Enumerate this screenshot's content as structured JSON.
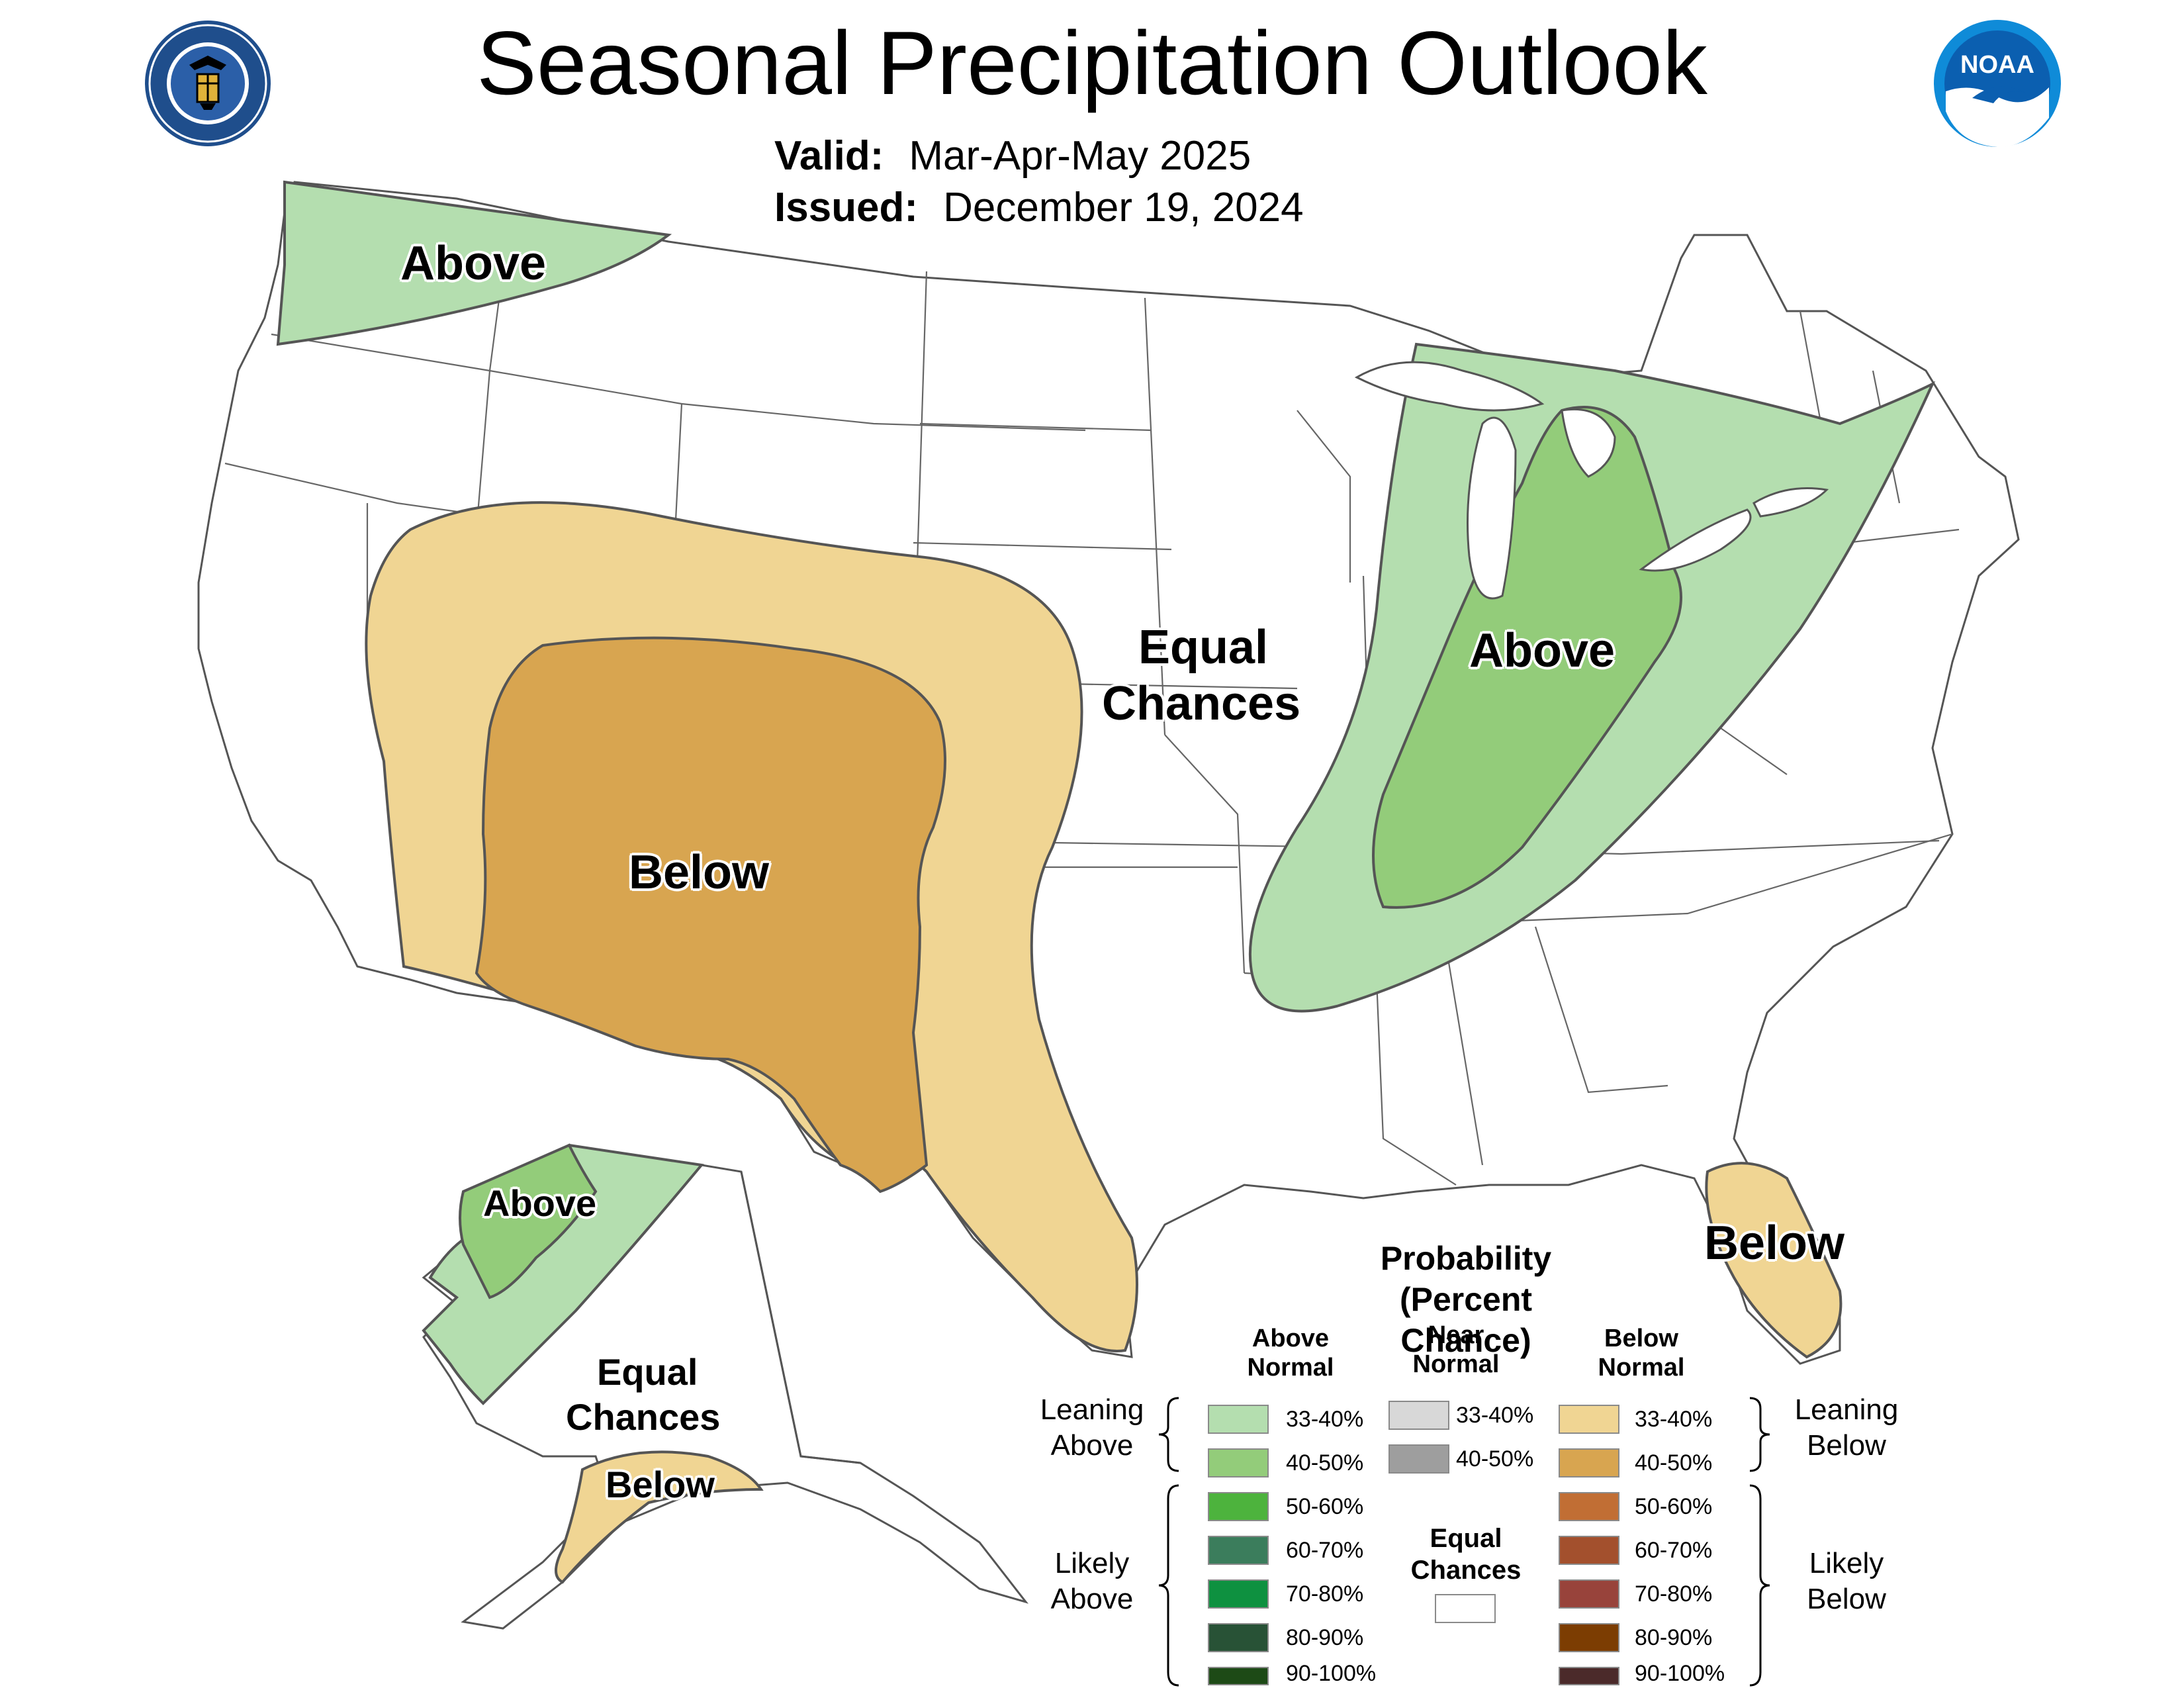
{
  "header": {
    "title": "Seasonal Precipitation Outlook",
    "valid_label": "Valid:",
    "valid_value": "Mar-Apr-May 2025",
    "issued_label": "Issued:",
    "issued_value": "December 19, 2024"
  },
  "logos": {
    "left": "department-of-commerce-seal",
    "right_text": "NOAA"
  },
  "map_labels": {
    "nw_above": "Above",
    "equal_chances_line1": "Equal",
    "equal_chances_line2": "Chances",
    "southwest_below": "Below",
    "ohio_valley_above": "Above",
    "florida_below": "Below",
    "alaska_above": "Above",
    "alaska_equal_line1": "Equal",
    "alaska_equal_line2": "Chances",
    "alaska_below": "Below"
  },
  "legend": {
    "title_line1": "Probability",
    "title_line2": "(Percent Chance)",
    "above_head_line1": "Above",
    "above_head_line2": "Normal",
    "near_head_line1": "Near",
    "near_head_line2": "Normal",
    "below_head_line1": "Below",
    "below_head_line2": "Normal",
    "leaning_above_line1": "Leaning",
    "leaning_above_line2": "Above",
    "likely_above_line1": "Likely",
    "likely_above_line2": "Above",
    "leaning_below_line1": "Leaning",
    "leaning_below_line2": "Below",
    "likely_below_line1": "Likely",
    "likely_below_line2": "Below",
    "equal_line1": "Equal",
    "equal_line2": "Chances",
    "above": [
      {
        "range": "33-40%",
        "color": "#b4deaf"
      },
      {
        "range": "40-50%",
        "color": "#93cc7a"
      },
      {
        "range": "50-60%",
        "color": "#4db33d"
      },
      {
        "range": "60-70%",
        "color": "#3b7d5c"
      },
      {
        "range": "70-80%",
        "color": "#0e9140"
      },
      {
        "range": "80-90%",
        "color": "#285236"
      },
      {
        "range": "90-100%",
        "color": "#1d4a16"
      }
    ],
    "near": [
      {
        "range": "33-40%",
        "color": "#d8d8d8"
      },
      {
        "range": "40-50%",
        "color": "#9e9e9e"
      }
    ],
    "below": [
      {
        "range": "33-40%",
        "color": "#f0d593"
      },
      {
        "range": "40-50%",
        "color": "#d8a550"
      },
      {
        "range": "50-60%",
        "color": "#c16e34"
      },
      {
        "range": "60-70%",
        "color": "#a3502d"
      },
      {
        "range": "70-80%",
        "color": "#98433b"
      },
      {
        "range": "80-90%",
        "color": "#7c3d02"
      },
      {
        "range": "90-100%",
        "color": "#4b2a2a"
      }
    ]
  }
}
